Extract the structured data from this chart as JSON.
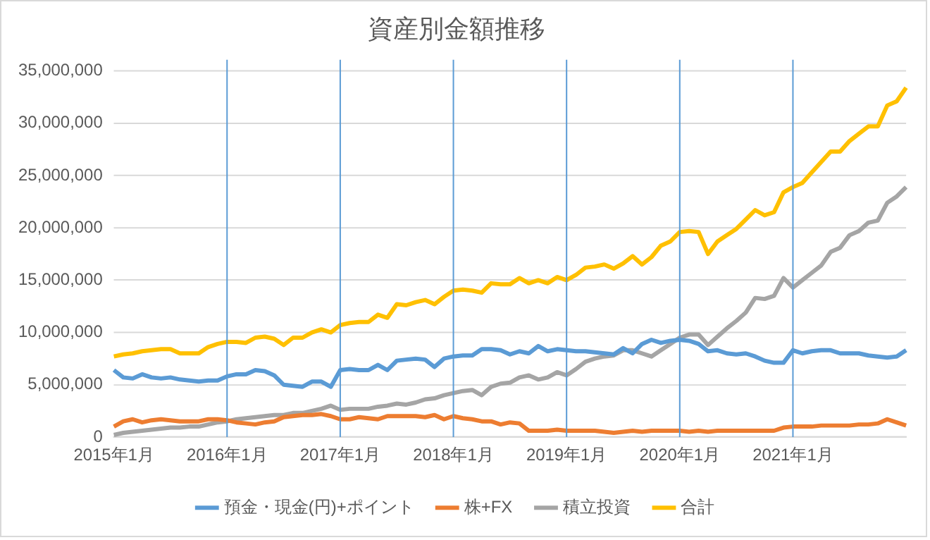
{
  "chart_data": {
    "type": "line",
    "title": "資産別金額推移",
    "categories": [
      "2015年1月",
      null,
      null,
      null,
      null,
      null,
      null,
      null,
      null,
      null,
      null,
      null,
      "2016年1月",
      null,
      null,
      null,
      null,
      null,
      null,
      null,
      null,
      null,
      null,
      null,
      "2017年1月",
      null,
      null,
      null,
      null,
      null,
      null,
      null,
      null,
      null,
      null,
      null,
      "2018年1月",
      null,
      null,
      null,
      null,
      null,
      null,
      null,
      null,
      null,
      null,
      null,
      "2019年1月",
      null,
      null,
      null,
      null,
      null,
      null,
      null,
      null,
      null,
      null,
      null,
      "2020年1月",
      null,
      null,
      null,
      null,
      null,
      null,
      null,
      null,
      null,
      null,
      null,
      "2021年1月",
      null,
      null,
      null,
      null,
      null,
      null,
      null,
      null,
      null,
      null,
      null,
      null
    ],
    "series": [
      {
        "name": "預金・現金(円)+ポイント",
        "color": "#5b9bd5",
        "values": [
          6400000,
          5700000,
          5600000,
          6000000,
          5700000,
          5600000,
          5700000,
          5500000,
          5400000,
          5300000,
          5400000,
          5400000,
          5800000,
          6000000,
          6000000,
          6400000,
          6300000,
          5900000,
          5000000,
          4900000,
          4800000,
          5300000,
          5300000,
          4800000,
          6400000,
          6500000,
          6400000,
          6400000,
          6900000,
          6400000,
          7300000,
          7400000,
          7500000,
          7400000,
          6700000,
          7500000,
          7700000,
          7800000,
          7800000,
          8400000,
          8400000,
          8300000,
          7900000,
          8200000,
          8000000,
          8700000,
          8200000,
          8400000,
          8300000,
          8200000,
          8200000,
          8100000,
          8000000,
          7900000,
          8500000,
          8000000,
          8900000,
          9300000,
          9000000,
          9200000,
          9300000,
          9200000,
          8900000,
          8200000,
          8300000,
          8000000,
          7900000,
          8000000,
          7700000,
          7300000,
          7100000,
          7100000,
          8300000,
          8000000,
          8200000,
          8300000,
          8300000,
          8000000,
          8000000,
          8000000,
          7800000,
          7700000,
          7600000,
          7700000,
          8300000
        ]
      },
      {
        "name": "株+FX",
        "color": "#ed7d31",
        "values": [
          1000000,
          1500000,
          1700000,
          1400000,
          1600000,
          1700000,
          1600000,
          1500000,
          1500000,
          1500000,
          1700000,
          1700000,
          1600000,
          1400000,
          1300000,
          1200000,
          1400000,
          1500000,
          1900000,
          2000000,
          2100000,
          2100000,
          2200000,
          2000000,
          1700000,
          1700000,
          1900000,
          1800000,
          1700000,
          2000000,
          2000000,
          2000000,
          2000000,
          1900000,
          2100000,
          1700000,
          2000000,
          1800000,
          1700000,
          1500000,
          1500000,
          1200000,
          1400000,
          1300000,
          600000,
          600000,
          600000,
          700000,
          600000,
          600000,
          600000,
          600000,
          500000,
          400000,
          500000,
          600000,
          500000,
          600000,
          600000,
          600000,
          600000,
          500000,
          600000,
          500000,
          600000,
          600000,
          600000,
          600000,
          600000,
          600000,
          600000,
          900000,
          1000000,
          1000000,
          1000000,
          1100000,
          1100000,
          1100000,
          1100000,
          1200000,
          1200000,
          1300000,
          1700000,
          1400000,
          1100000
        ]
      },
      {
        "name": "積立投資",
        "color": "#a5a5a5",
        "values": [
          200000,
          400000,
          500000,
          600000,
          700000,
          800000,
          900000,
          900000,
          1000000,
          1000000,
          1200000,
          1400000,
          1500000,
          1700000,
          1800000,
          1900000,
          2000000,
          2100000,
          2100000,
          2300000,
          2300000,
          2500000,
          2700000,
          3000000,
          2600000,
          2700000,
          2700000,
          2700000,
          2900000,
          3000000,
          3200000,
          3100000,
          3300000,
          3600000,
          3700000,
          4000000,
          4200000,
          4400000,
          4500000,
          4000000,
          4800000,
          5100000,
          5200000,
          5700000,
          5900000,
          5500000,
          5700000,
          6200000,
          5900000,
          6500000,
          7200000,
          7500000,
          7700000,
          7800000,
          8300000,
          8300000,
          8000000,
          7700000,
          8300000,
          8900000,
          9500000,
          9800000,
          9800000,
          8800000,
          9600000,
          10400000,
          11100000,
          11900000,
          13300000,
          13200000,
          13500000,
          15200000,
          14300000,
          15000000,
          15700000,
          16400000,
          17700000,
          18100000,
          19300000,
          19700000,
          20500000,
          20700000,
          22400000,
          23000000,
          23900000
        ]
      },
      {
        "name": "合計",
        "color": "#ffc000",
        "values": [
          7700000,
          7900000,
          8000000,
          8200000,
          8300000,
          8400000,
          8400000,
          8000000,
          8000000,
          8000000,
          8600000,
          8900000,
          9100000,
          9100000,
          9000000,
          9500000,
          9600000,
          9400000,
          8800000,
          9500000,
          9500000,
          10000000,
          10300000,
          10000000,
          10700000,
          10900000,
          11000000,
          11000000,
          11700000,
          11400000,
          12700000,
          12600000,
          12900000,
          13100000,
          12700000,
          13400000,
          14000000,
          14100000,
          14000000,
          13800000,
          14700000,
          14600000,
          14600000,
          15200000,
          14700000,
          15000000,
          14700000,
          15300000,
          15000000,
          15500000,
          16200000,
          16300000,
          16500000,
          16100000,
          16600000,
          17300000,
          16500000,
          17200000,
          18300000,
          18700000,
          19600000,
          19700000,
          19600000,
          17500000,
          18700000,
          19300000,
          19900000,
          20800000,
          21700000,
          21200000,
          21500000,
          23400000,
          23900000,
          24300000,
          25300000,
          26300000,
          27300000,
          27300000,
          28300000,
          29000000,
          29700000,
          29700000,
          31700000,
          32100000,
          33400000
        ]
      }
    ],
    "ylim": [
      0,
      35000000
    ],
    "yticks": [
      {
        "value": 0,
        "label": "0"
      },
      {
        "value": 5000000,
        "label": "5,000,000"
      },
      {
        "value": 10000000,
        "label": "10,000,000"
      },
      {
        "value": 15000000,
        "label": "15,000,000"
      },
      {
        "value": 20000000,
        "label": "20,000,000"
      },
      {
        "value": 25000000,
        "label": "25,000,000"
      },
      {
        "value": 30000000,
        "label": "30,000,000"
      },
      {
        "value": 35000000,
        "label": "35,000,000"
      }
    ],
    "grid": "y",
    "legend": "bottom",
    "marker": "none",
    "line_style": "solid",
    "ref_lines": [
      {
        "axis": "x",
        "value": "2016年1月",
        "color": "#5b9bd5"
      },
      {
        "axis": "x",
        "value": "2017年1月",
        "color": "#5b9bd5"
      },
      {
        "axis": "x",
        "value": "2018年1月",
        "color": "#5b9bd5"
      },
      {
        "axis": "x",
        "value": "2019年1月",
        "color": "#5b9bd5"
      },
      {
        "axis": "x",
        "value": "2020年1月",
        "color": "#5b9bd5"
      },
      {
        "axis": "x",
        "value": "2021年1月",
        "color": "#5b9bd5"
      }
    ]
  }
}
